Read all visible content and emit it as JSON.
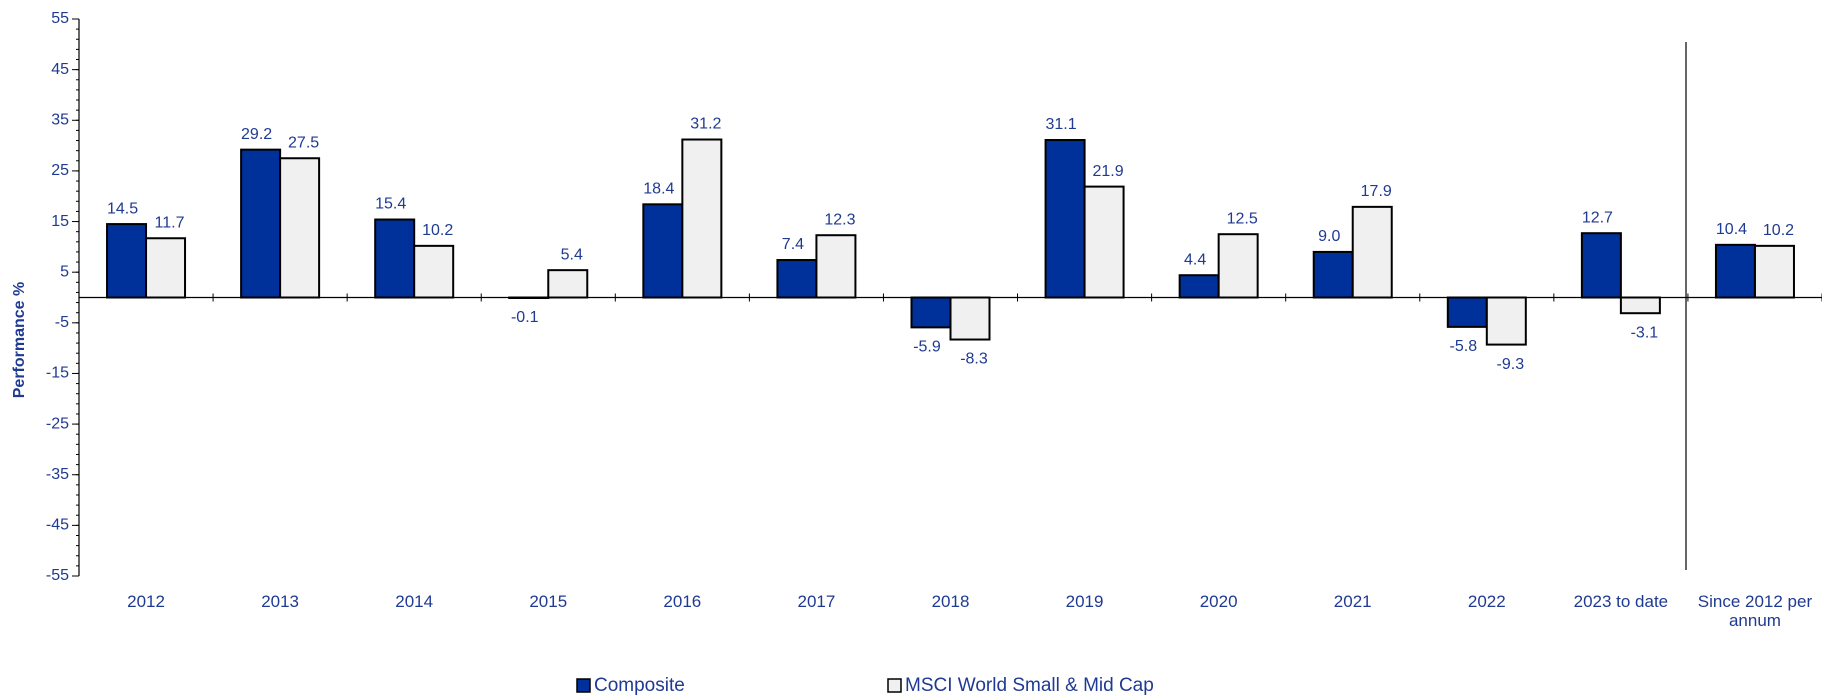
{
  "chart_data": {
    "type": "bar",
    "y_label": "Performance %",
    "categories": [
      "2012",
      "2013",
      "2014",
      "2015",
      "2016",
      "2017",
      "2018",
      "2019",
      "2020",
      "2021",
      "2022",
      "2023 to date",
      "Since 2012 per annum"
    ],
    "series": [
      {
        "name": "Composite",
        "color": "#00309a",
        "values": [
          14.5,
          29.2,
          15.4,
          -0.1,
          18.4,
          7.4,
          -5.9,
          31.1,
          4.4,
          9.0,
          -5.8,
          12.7,
          10.4
        ],
        "value_labels": [
          "14.5",
          "29.2",
          "15.4",
          "-0.1",
          "18.4",
          "7.4",
          "-5.9",
          "31.1",
          "4.4",
          "9.0",
          "-5.8",
          "12.7",
          "10.4"
        ]
      },
      {
        "name": "MSCI World Small & Mid Cap",
        "color": "#f0f0f0",
        "values": [
          11.7,
          27.5,
          10.2,
          5.4,
          31.2,
          12.3,
          -8.3,
          21.9,
          12.5,
          17.9,
          -9.3,
          -3.1,
          10.2
        ],
        "value_labels": [
          "11.7",
          "27.5",
          "10.2",
          "5.4",
          "31.2",
          "12.3",
          "-8.3",
          "21.9",
          "12.5",
          "17.9",
          "-9.3",
          "-3.1",
          "10.2"
        ]
      }
    ],
    "ylim": [
      -55,
      55
    ],
    "yticks": [
      -55,
      -45,
      -35,
      -25,
      -15,
      -5,
      5,
      15,
      25,
      35,
      45,
      55
    ],
    "grid": false,
    "legend": "bottom"
  }
}
